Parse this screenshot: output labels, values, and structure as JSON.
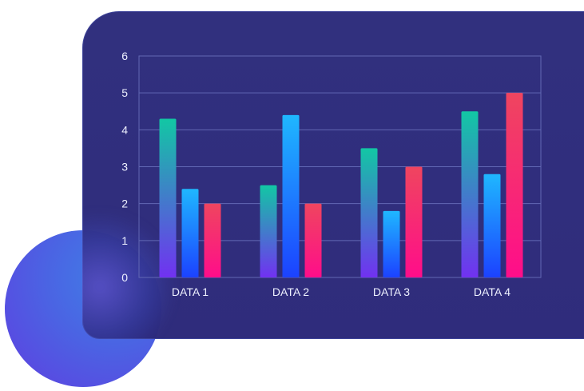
{
  "chart_data": {
    "type": "bar",
    "title": "",
    "xlabel": "",
    "ylabel": "",
    "categories": [
      "DATA 1",
      "DATA 2",
      "DATA 3",
      "DATA 4"
    ],
    "series": [
      {
        "values": [
          4.3,
          2.5,
          3.5,
          4.5
        ],
        "color_top": "#12c7a4",
        "color_bottom": "#7131f1"
      },
      {
        "values": [
          2.4,
          4.4,
          1.8,
          2.8
        ],
        "color_top": "#1fb7ff",
        "color_bottom": "#1c42ff"
      },
      {
        "values": [
          2.0,
          2.0,
          3.0,
          5.0
        ],
        "color_top": "#ef455f",
        "color_bottom": "#ff0d8a"
      }
    ],
    "ylim": [
      0,
      6
    ],
    "yticks": [
      0,
      1,
      2,
      3,
      4,
      5,
      6
    ],
    "grid": true,
    "legend": "none"
  },
  "theme": {
    "card_background": "#2d2c7c",
    "grid_color": "#6268b4",
    "axis_text_color": "#eef1ff",
    "orb_color": "#4b63e3"
  }
}
